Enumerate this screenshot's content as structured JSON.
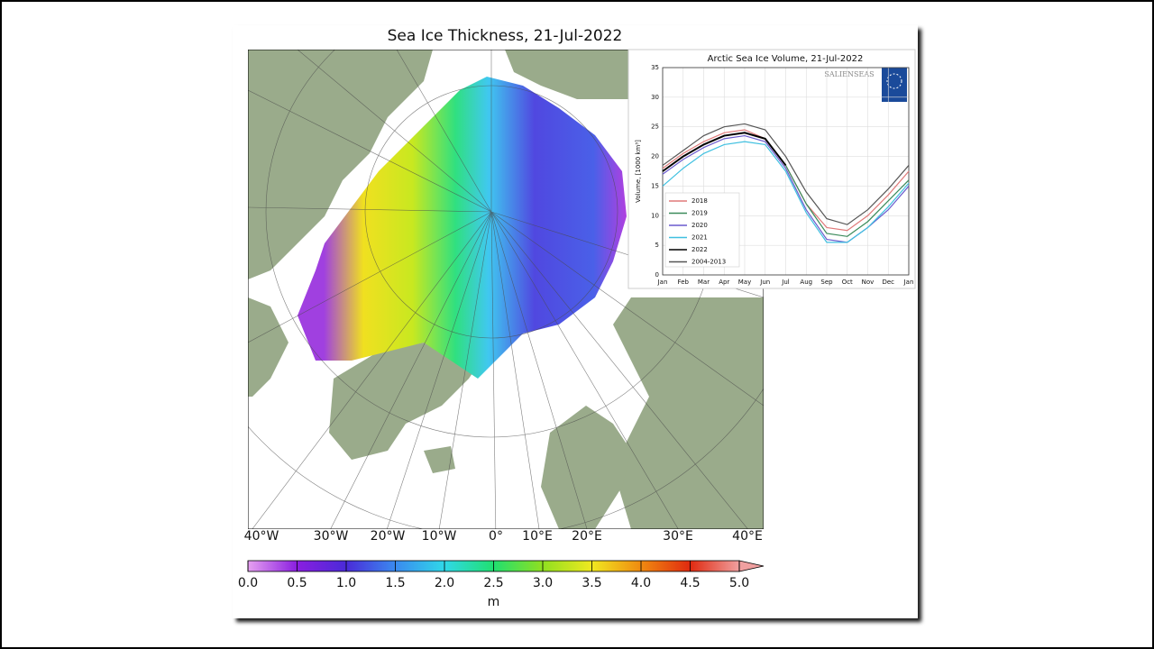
{
  "title": "Sea Ice Thickness, 21-Jul-2022",
  "map": {
    "longitude_labels": [
      "40°W",
      "30°W",
      "20°W",
      "10°W",
      "0°",
      "10°E",
      "20°E",
      "30°E",
      "40°E"
    ]
  },
  "colorbar": {
    "unit": "m",
    "xlim": [
      0,
      5
    ],
    "ticks": [
      {
        "value": 0,
        "label": "0.0"
      },
      0.5,
      {
        "value": 1,
        "label": "1.0"
      },
      1.5,
      {
        "value": 2,
        "label": "2.0"
      },
      2.5,
      {
        "value": 3,
        "label": "3.0"
      },
      3.5,
      {
        "value": 4,
        "label": "4.0"
      },
      4.5,
      {
        "value": 5,
        "label": "5.0"
      }
    ],
    "colors": [
      "#e6a0f0",
      "#8a1ee0",
      "#4a2ad8",
      "#3a8af0",
      "#30d8e8",
      "#20e070",
      "#90e020",
      "#f0e820",
      "#f08a10",
      "#e02a10",
      "#f0a0a0"
    ]
  },
  "chart_data": {
    "type": "line",
    "title": "Arctic Sea Ice Volume, 21-Jul-2022",
    "ylabel": "Volume, [1000 km³]",
    "watermark": "SALIENSEAS",
    "categories": [
      "Jan",
      "Feb",
      "Mar",
      "Apr",
      "May",
      "Jun",
      "Jul",
      "Aug",
      "Sep",
      "Oct",
      "Nov",
      "Dec",
      "Jan"
    ],
    "ylim": [
      0,
      35
    ],
    "yticks": [
      0,
      5,
      10,
      15,
      20,
      25,
      30,
      35
    ],
    "grid": true,
    "series": [
      {
        "name": "2018",
        "color": "#e07a7a",
        "values": [
          18,
          20.5,
          22.5,
          24,
          24.5,
          23,
          18.5,
          12,
          8,
          7.5,
          10,
          13.5,
          17.5
        ]
      },
      {
        "name": "2019",
        "color": "#3a8a5a",
        "values": [
          17.5,
          20,
          22,
          23.5,
          24,
          23,
          18.5,
          12,
          7,
          6.5,
          9,
          12.5,
          16
        ]
      },
      {
        "name": "2020",
        "color": "#6a5acd",
        "values": [
          17,
          19.5,
          21.5,
          23,
          23.5,
          22.5,
          18,
          11,
          6,
          5.5,
          8,
          11,
          15
        ]
      },
      {
        "name": "2021",
        "color": "#40c0e0",
        "values": [
          15,
          18,
          20.5,
          22,
          22.5,
          22,
          17.5,
          10.5,
          5.5,
          5.5,
          8,
          11.5,
          15.5
        ]
      },
      {
        "name": "2022",
        "color": "#000000",
        "values": [
          17.5,
          20,
          22,
          23.5,
          24,
          23,
          18.5,
          null,
          null,
          null,
          null,
          null,
          null
        ]
      },
      {
        "name": "2004-2013",
        "color": "#555555",
        "values": [
          18.5,
          21,
          23.5,
          25,
          25.5,
          24.5,
          20,
          14,
          9.5,
          8.5,
          11,
          14.5,
          18.5
        ]
      }
    ]
  }
}
